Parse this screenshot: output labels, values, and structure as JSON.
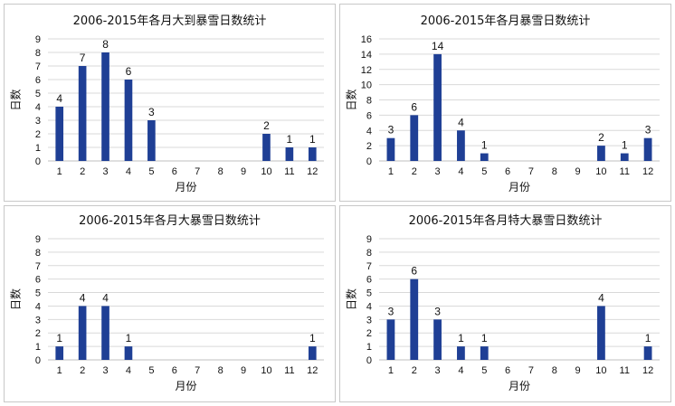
{
  "chart_data": [
    {
      "type": "bar",
      "title": "2006-2015年各月大到暴雪日数统计",
      "xlabel": "月份",
      "ylabel": "日数",
      "categories": [
        "1",
        "2",
        "3",
        "4",
        "5",
        "6",
        "7",
        "8",
        "9",
        "10",
        "11",
        "12"
      ],
      "values": [
        4,
        7,
        8,
        6,
        3,
        0,
        0,
        0,
        0,
        2,
        1,
        1
      ],
      "data_labels": [
        "4",
        "7",
        "8",
        "6",
        "3",
        "",
        "",
        "",
        "",
        "2",
        "1",
        "1"
      ],
      "ylim": [
        0,
        9
      ],
      "yticks": [
        "0",
        "1",
        "2",
        "3",
        "4",
        "5",
        "6",
        "7",
        "8",
        "9"
      ],
      "ytick_values": [
        0,
        1,
        2,
        3,
        4,
        5,
        6,
        7,
        8,
        9
      ],
      "grid": true,
      "bar_color": "#1f3f95"
    },
    {
      "type": "bar",
      "title": "2006-2015年各月暴雪日数统计",
      "xlabel": "月份",
      "ylabel": "日数",
      "categories": [
        "1",
        "2",
        "3",
        "4",
        "5",
        "6",
        "7",
        "8",
        "9",
        "10",
        "11",
        "12"
      ],
      "values": [
        3,
        6,
        14,
        4,
        1,
        0,
        0,
        0,
        0,
        2,
        1,
        3
      ],
      "data_labels": [
        "3",
        "6",
        "14",
        "4",
        "1",
        "",
        "",
        "",
        "",
        "2",
        "1",
        "3"
      ],
      "ylim": [
        0,
        16
      ],
      "yticks": [
        "0",
        "2",
        "4",
        "6",
        "8",
        "10",
        "12",
        "14",
        "16"
      ],
      "ytick_values": [
        0,
        2,
        4,
        6,
        8,
        10,
        12,
        14,
        16
      ],
      "grid": true,
      "bar_color": "#1f3f95"
    },
    {
      "type": "bar",
      "title": "2006-2015年各月大暴雪日数统计",
      "xlabel": "月份",
      "ylabel": "日数",
      "categories": [
        "1",
        "2",
        "3",
        "4",
        "5",
        "6",
        "7",
        "8",
        "9",
        "10",
        "11",
        "12"
      ],
      "values": [
        1,
        4,
        4,
        1,
        0,
        0,
        0,
        0,
        0,
        0,
        0,
        1
      ],
      "data_labels": [
        "1",
        "4",
        "4",
        "1",
        "",
        "",
        "",
        "",
        "",
        "",
        "",
        "1"
      ],
      "ylim": [
        0,
        9
      ],
      "yticks": [
        "0",
        "1",
        "2",
        "3",
        "4",
        "5",
        "6",
        "7",
        "8",
        "9"
      ],
      "ytick_values": [
        0,
        1,
        2,
        3,
        4,
        5,
        6,
        7,
        8,
        9
      ],
      "grid": true,
      "bar_color": "#1f3f95"
    },
    {
      "type": "bar",
      "title": "2006-2015年各月特大暴雪日数统计",
      "xlabel": "月份",
      "ylabel": "日数",
      "categories": [
        "1",
        "2",
        "3",
        "4",
        "5",
        "6",
        "7",
        "8",
        "9",
        "10",
        "11",
        "12"
      ],
      "values": [
        3,
        6,
        3,
        1,
        1,
        0,
        0,
        0,
        0,
        4,
        0,
        1
      ],
      "data_labels": [
        "3",
        "6",
        "3",
        "1",
        "1",
        "",
        "",
        "",
        "",
        "4",
        "",
        "1"
      ],
      "ylim": [
        0,
        9
      ],
      "yticks": [
        "0",
        "1",
        "2",
        "3",
        "4",
        "5",
        "6",
        "7",
        "8",
        "9"
      ],
      "ytick_values": [
        0,
        1,
        2,
        3,
        4,
        5,
        6,
        7,
        8,
        9
      ],
      "grid": true,
      "bar_color": "#1f3f95"
    }
  ]
}
